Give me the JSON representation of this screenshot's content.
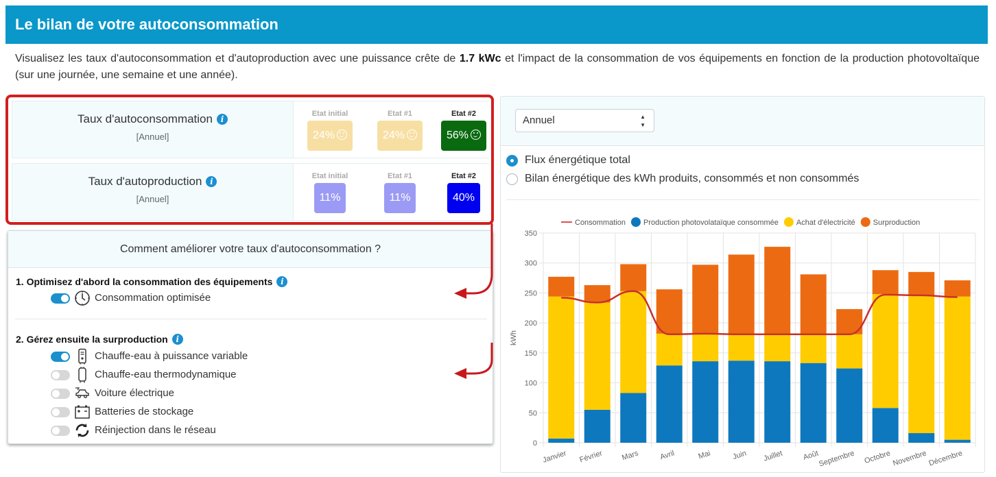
{
  "header": {
    "title": "Le bilan de votre autoconsommation"
  },
  "intro": {
    "before": "Visualisez les taux d'autoconsommation et d'autoproduction avec une puissance crête de ",
    "power": "1.7 kWc",
    "after": " et l'impact de la consommation de vos équipements en fonction de la production photovoltaïque (sur une journée, une semaine et une année)."
  },
  "rates": [
    {
      "title": "Taux d'autoconsommation",
      "period": "[Annuel]",
      "states": [
        {
          "label": "Etat initial",
          "value": "24%",
          "color": "#f7dfa3",
          "smiley": true
        },
        {
          "label": "Etat #1",
          "value": "24%",
          "color": "#f7dfa3",
          "smiley": true
        },
        {
          "label": "Etat #2",
          "value": "56%",
          "color": "#0a6a10",
          "smiley": true
        }
      ]
    },
    {
      "title": "Taux d'autoproduction",
      "period": "[Annuel]",
      "states": [
        {
          "label": "Etat initial",
          "value": "11%",
          "color": "#9b9bf5",
          "smiley": false
        },
        {
          "label": "Etat #1",
          "value": "11%",
          "color": "#9b9bf5",
          "smiley": false
        },
        {
          "label": "Etat #2",
          "value": "40%",
          "color": "#0000f0",
          "smiley": false
        }
      ]
    }
  ],
  "improve": {
    "title": "Comment améliorer votre taux d'autoconsommation ?",
    "step1": {
      "title": "1. Optimisez d'abord la consommation des équipements"
    },
    "step1_options": [
      {
        "label": "Consommation optimisée",
        "on": true,
        "icon": "clock-icon"
      }
    ],
    "step2": {
      "title": "2. Gérez ensuite la surproduction"
    },
    "step2_options": [
      {
        "label": "Chauffe-eau à puissance variable",
        "on": true,
        "icon": "water-heater-icon"
      },
      {
        "label": "Chauffe-eau thermodynamique",
        "on": false,
        "icon": "thermo-water-heater-icon"
      },
      {
        "label": "Voiture électrique",
        "on": false,
        "icon": "electric-car-icon"
      },
      {
        "label": "Batteries de stockage",
        "on": false,
        "icon": "battery-icon"
      },
      {
        "label": "Réinjection dans le réseau",
        "on": false,
        "icon": "refresh-icon"
      }
    ]
  },
  "panel": {
    "period_select": "Annuel",
    "radios": [
      {
        "label": "Flux énergétique total",
        "checked": true
      },
      {
        "label": "Bilan énergétique des kWh produits, consommés et non consommés",
        "checked": false
      }
    ]
  },
  "colors": {
    "consumption": "#d9534f",
    "pv_consumed": "#0e78be",
    "purchase": "#ffcc00",
    "surplus": "#ec6b12"
  },
  "chart_data": {
    "type": "bar",
    "stacked": true,
    "categories": [
      "Janvier",
      "Février",
      "Mars",
      "Avril",
      "Mai",
      "Juin",
      "Juillet",
      "Août",
      "Septembre",
      "Octobre",
      "Novembre",
      "Décembre"
    ],
    "ylabel": "kWh",
    "ylim": [
      0,
      350
    ],
    "yticks": [
      0,
      50,
      100,
      150,
      200,
      250,
      300,
      350
    ],
    "legend_position": "top",
    "grid": true,
    "series": [
      {
        "name": "Production photovolataïque consommée",
        "type": "bar",
        "color": "#0e78be",
        "values": [
          7,
          55,
          83,
          129,
          136,
          137,
          136,
          133,
          124,
          58,
          16,
          5
        ]
      },
      {
        "name": "Achat d'électricité",
        "type": "bar",
        "color": "#ffcc00",
        "values": [
          237,
          179,
          170,
          53,
          46,
          45,
          46,
          49,
          57,
          190,
          229,
          239
        ]
      },
      {
        "name": "Surproduction",
        "type": "bar",
        "color": "#ec6b12",
        "values": [
          33,
          29,
          45,
          74,
          115,
          132,
          145,
          99,
          42,
          40,
          40,
          27
        ]
      },
      {
        "name": "Consommation",
        "type": "line",
        "color": "#d9534f",
        "values": [
          242,
          234,
          253,
          181,
          182,
          181,
          181,
          181,
          181,
          247,
          246,
          243
        ]
      }
    ]
  }
}
